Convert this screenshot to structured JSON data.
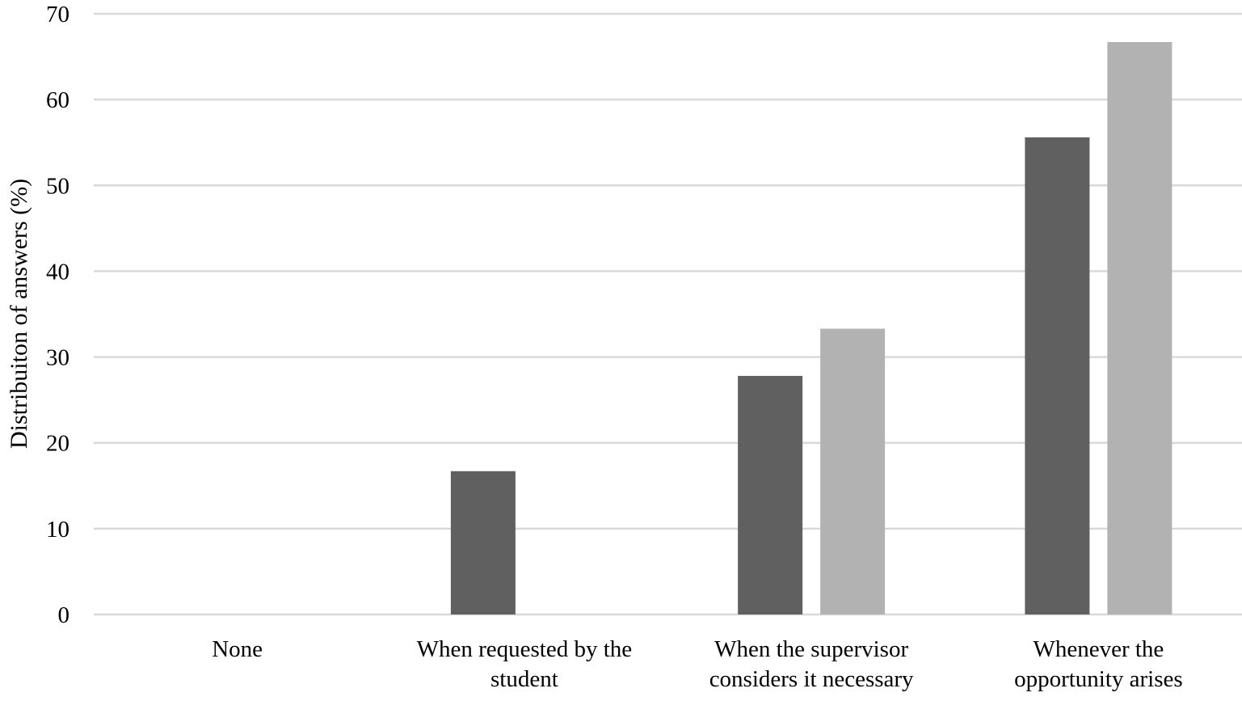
{
  "chart_data": {
    "type": "bar",
    "title": "",
    "xlabel": "",
    "ylabel": "Distribuiton of answers (%)",
    "ylim": [
      0,
      70
    ],
    "yticks": [
      0,
      10,
      20,
      30,
      40,
      50,
      60,
      70
    ],
    "grid": true,
    "legend": "none",
    "categories": [
      [
        "None"
      ],
      [
        "When requested by the",
        "student"
      ],
      [
        "When the supervisor",
        "considers it necessary"
      ],
      [
        "Whenever the",
        "opportunity arises"
      ]
    ],
    "series": [
      {
        "color": "#606060",
        "values": [
          0,
          16.7,
          27.8,
          55.6
        ]
      },
      {
        "color": "#b2b2b2",
        "values": [
          0,
          0,
          33.3,
          66.7
        ]
      }
    ],
    "gridline_color": "#d9d9d9"
  }
}
